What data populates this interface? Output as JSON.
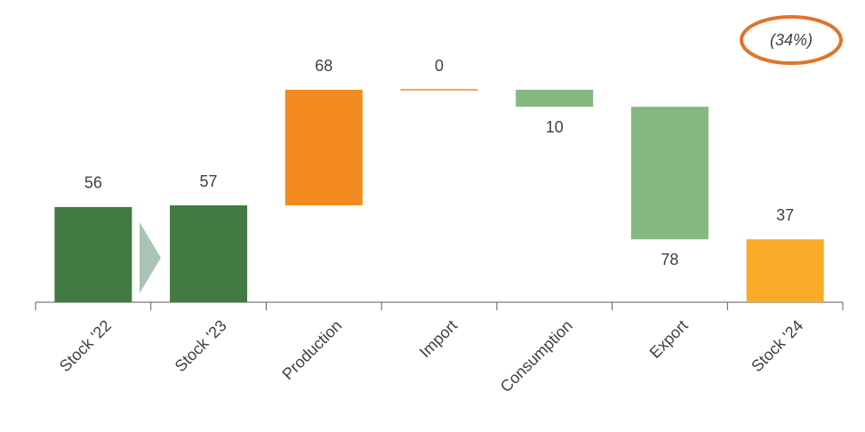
{
  "chart_data": {
    "type": "waterfall",
    "categories": [
      "Stock '22",
      "Stock '23",
      "Production",
      "Import",
      "Consumption",
      "Export",
      "Stock '24"
    ],
    "values": [
      56,
      57,
      68,
      0,
      10,
      78,
      37
    ],
    "measures": [
      "total",
      "total",
      "increase",
      "increase",
      "decrease",
      "decrease",
      "total"
    ],
    "colors": [
      "#437a41",
      "#437a41",
      "#f28a1f",
      "#f28a1f",
      "#84b880",
      "#84b880",
      "#f9ab27"
    ],
    "annotation": "(34%)"
  }
}
